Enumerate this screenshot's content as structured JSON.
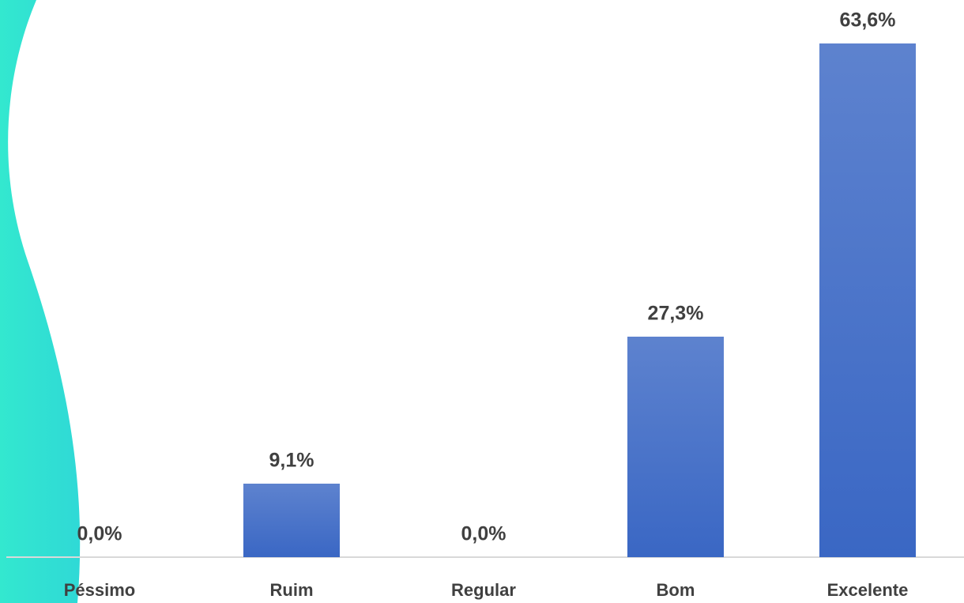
{
  "chart_data": {
    "type": "bar",
    "categories": [
      "Péssimo",
      "Ruim",
      "Regular",
      "Bom",
      "Excelente"
    ],
    "values": [
      0,
      9.1,
      0,
      27.3,
      63.6
    ],
    "value_labels": [
      "0,0%",
      "9,1%",
      "0,0%",
      "27,3%",
      "63,6%"
    ],
    "color": "#3a67c4"
  }
}
